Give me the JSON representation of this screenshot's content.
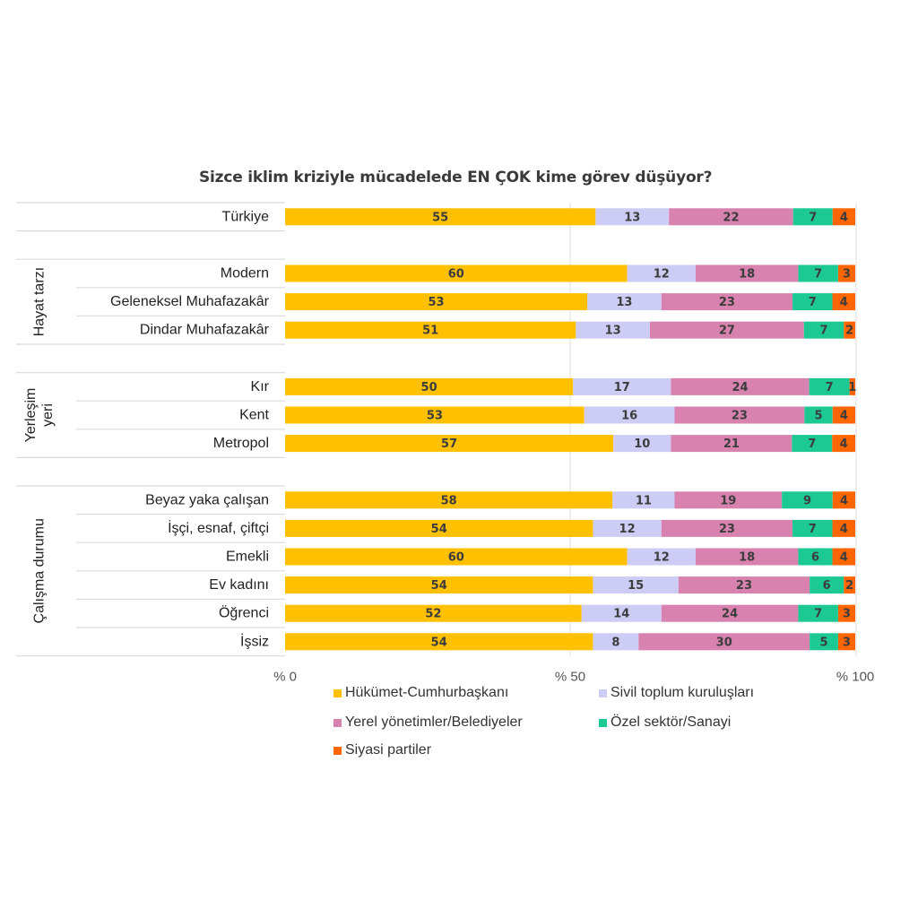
{
  "chart_data": {
    "type": "bar",
    "orientation": "horizontal",
    "stacked": true,
    "title": "Sizce iklim kriziyle mücadelede EN ÇOK kime görev düşüyor?",
    "xlabel": "",
    "ylabel": "",
    "xlim": [
      0,
      100
    ],
    "x_ticks": [
      "% 0",
      "% 50",
      "% 100"
    ],
    "grid": "vertical gridline at 50",
    "legend_position": "bottom",
    "series_names": [
      "Hükümet-Cumhurbaşkanı",
      "Sivil toplum kuruluşları",
      "Yerel yönetimler/Belediyeler",
      "Özel sektör/Sanayi",
      "Siyasi partiler"
    ],
    "series_colors": [
      "#ffc000",
      "#ccccf5",
      "#d882b0",
      "#1dc993",
      "#ff6600"
    ],
    "groups": [
      {
        "name": "",
        "rows": [
          {
            "label": "Türkiye",
            "values": [
              55,
              13,
              22,
              7,
              4
            ]
          }
        ]
      },
      {
        "name": "Hayat tarzı",
        "rows": [
          {
            "label": "Modern",
            "values": [
              60,
              12,
              18,
              7,
              3
            ]
          },
          {
            "label": "Geleneksel Muhafazakâr",
            "values": [
              53,
              13,
              23,
              7,
              4
            ]
          },
          {
            "label": "Dindar Muhafazakâr",
            "values": [
              51,
              13,
              27,
              7,
              2
            ]
          }
        ]
      },
      {
        "name": "Yerleşim yeri",
        "name_lines": [
          "Yerleşim",
          "yeri"
        ],
        "rows": [
          {
            "label": "Kır",
            "values": [
              50,
              17,
              24,
              7,
              1
            ]
          },
          {
            "label": "Kent",
            "values": [
              53,
              16,
              23,
              5,
              4
            ]
          },
          {
            "label": "Metropol",
            "values": [
              57,
              10,
              21,
              7,
              4
            ]
          }
        ]
      },
      {
        "name": "Çalışma durumu",
        "rows": [
          {
            "label": "Beyaz yaka çalışan",
            "values": [
              58,
              11,
              19,
              9,
              4
            ]
          },
          {
            "label": "İşçi, esnaf, çiftçi",
            "values": [
              54,
              12,
              23,
              7,
              4
            ]
          },
          {
            "label": "Emekli",
            "values": [
              60,
              12,
              18,
              6,
              4
            ]
          },
          {
            "label": "Ev kadını",
            "values": [
              54,
              15,
              23,
              6,
              2
            ]
          },
          {
            "label": "Öğrenci",
            "values": [
              52,
              14,
              24,
              7,
              3
            ]
          },
          {
            "label": "İşsiz",
            "values": [
              54,
              8,
              30,
              5,
              3
            ]
          }
        ]
      }
    ]
  },
  "legend": [
    {
      "label": "Hükümet-Cumhurbaşkanı",
      "color": "#ffc000"
    },
    {
      "label": "Sivil toplum kuruluşları",
      "color": "#ccccf5"
    },
    {
      "label": "Yerel yönetimler/Belediyeler",
      "color": "#d882b0"
    },
    {
      "label": "Özel sektör/Sanayi",
      "color": "#1dc993"
    },
    {
      "label": "Siyasi partiler",
      "color": "#ff6600"
    }
  ]
}
